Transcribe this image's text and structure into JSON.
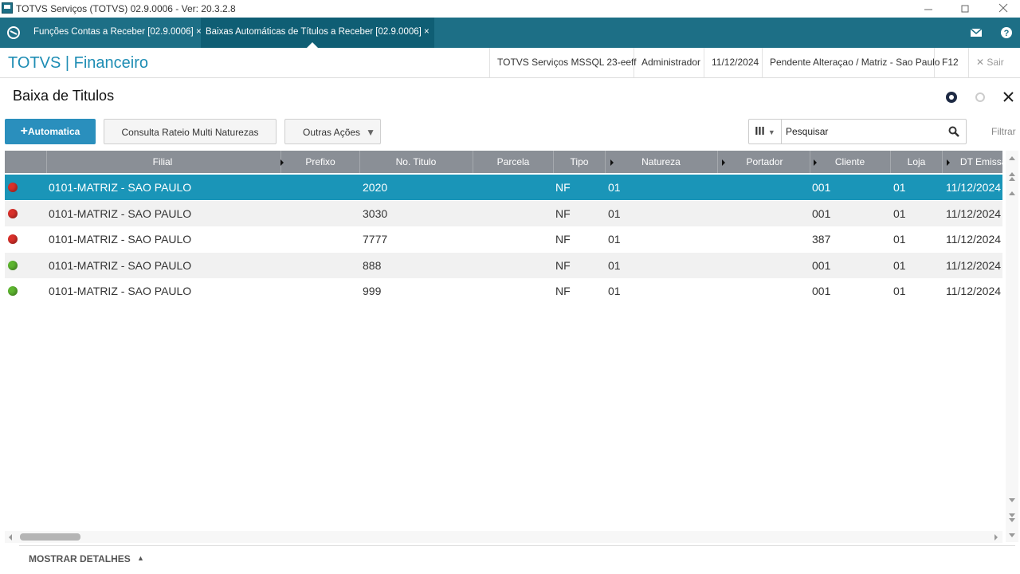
{
  "window": {
    "title": "TOTVS Serviços (TOTVS) 02.9.0006 - Ver: 20.3.2.8"
  },
  "tabs": [
    "Funções Contas a Receber [02.9.0006]",
    "Baixas Automáticas de Títulos a Receber [02.9.0006]"
  ],
  "header": {
    "brand": "TOTVS | Financeiro",
    "info": [
      "TOTVS Serviços MSSQL 23-eeff",
      "Administrador",
      "11/12/2024",
      "Pendente Alteraçao / Matriz - Sao Paulo",
      "F12"
    ],
    "exit": "Sair"
  },
  "page": {
    "title": "Baixa de Titulos"
  },
  "toolbar": {
    "buttons": [
      "Automatica",
      "Consulta Rateio Multi Naturezas",
      "Outras Ações"
    ],
    "search_placeholder": "Pesquisar",
    "filter": "Filtrar"
  },
  "table": {
    "columns": [
      "Filial",
      "Prefixo",
      "No. Titulo",
      "Parcela",
      "Tipo",
      "Natureza",
      "Portador",
      "Cliente",
      "Loja",
      "DT Emissao"
    ],
    "rows": [
      {
        "status": "red",
        "filial": "0101-MATRIZ - SAO PAULO",
        "no_titulo": "2020",
        "tipo": "NF",
        "natureza": "01",
        "cliente": "001",
        "loja": "01",
        "dt_emissao": "11/12/2024"
      },
      {
        "status": "red",
        "filial": "0101-MATRIZ - SAO PAULO",
        "no_titulo": "3030",
        "tipo": "NF",
        "natureza": "01",
        "cliente": "001",
        "loja": "01",
        "dt_emissao": "11/12/2024"
      },
      {
        "status": "red",
        "filial": "0101-MATRIZ - SAO PAULO",
        "no_titulo": "7777",
        "tipo": "NF",
        "natureza": "01",
        "cliente": "387",
        "loja": "01",
        "dt_emissao": "11/12/2024"
      },
      {
        "status": "green",
        "filial": "0101-MATRIZ - SAO PAULO",
        "no_titulo": "888",
        "tipo": "NF",
        "natureza": "01",
        "cliente": "001",
        "loja": "01",
        "dt_emissao": "11/12/2024"
      },
      {
        "status": "green",
        "filial": "0101-MATRIZ - SAO PAULO",
        "no_titulo": "999",
        "tipo": "NF",
        "natureza": "01",
        "cliente": "001",
        "loja": "01",
        "dt_emissao": "11/12/2024"
      }
    ]
  },
  "footer": {
    "details": "MOSTRAR DETALHES"
  }
}
